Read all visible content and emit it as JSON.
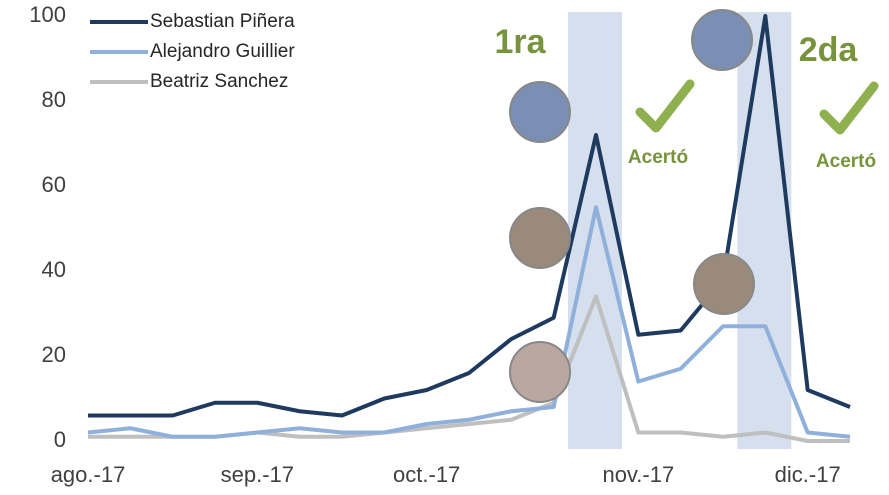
{
  "chart_data": {
    "type": "line",
    "categories": [
      "ago.-17",
      null,
      null,
      null,
      "sep.-17",
      null,
      null,
      null,
      "oct.-17",
      null,
      null,
      null,
      null,
      "nov.-17",
      null,
      null,
      null,
      "dic.-17",
      null
    ],
    "series": [
      {
        "name": "Sebastian Piñera",
        "color": "#1f3a5f",
        "values": [
          6,
          6,
          6,
          9,
          9,
          7,
          6,
          10,
          12,
          16,
          24,
          29,
          72,
          25,
          26,
          38,
          100,
          12,
          8
        ]
      },
      {
        "name": "Alejandro Guillier",
        "color": "#8fb0da",
        "values": [
          2,
          3,
          1,
          1,
          2,
          3,
          2,
          2,
          4,
          5,
          7,
          8,
          55,
          14,
          17,
          27,
          27,
          2,
          1
        ]
      },
      {
        "name": "Beatriz Sanchez",
        "color": "#bfbfbf",
        "values": [
          1,
          1,
          1,
          1,
          2,
          1,
          1,
          2,
          3,
          4,
          5,
          9,
          34,
          2,
          2,
          1,
          2,
          0,
          0
        ]
      }
    ],
    "ylim": [
      0,
      100
    ],
    "yticks": [
      0,
      20,
      40,
      60,
      80,
      100
    ],
    "grid": false,
    "legend": "top-left",
    "annotations": [
      "1ra",
      "2da",
      "Acertó",
      "Acertó"
    ]
  }
}
